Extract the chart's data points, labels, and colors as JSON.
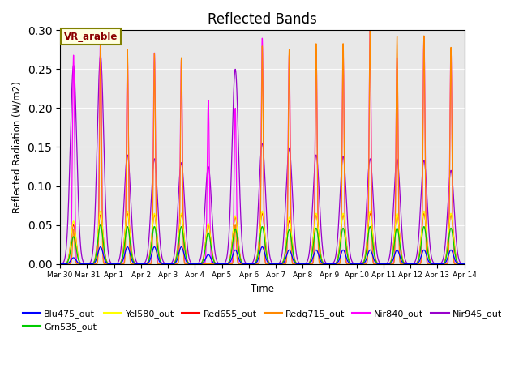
{
  "title": "Reflected Bands",
  "xlabel": "Time",
  "ylabel": "Reflected Radiation (W/m2)",
  "annotation": "VR_arable",
  "ylim": [
    0,
    0.3
  ],
  "series_order": [
    "Nir945_out",
    "Nir840_out",
    "Redg715_out",
    "Red655_out",
    "Yel580_out",
    "Grn535_out",
    "Blu475_out"
  ],
  "series": {
    "Blu475_out": {
      "color": "#0000FF"
    },
    "Grn535_out": {
      "color": "#00CC00"
    },
    "Yel580_out": {
      "color": "#FFFF00"
    },
    "Red655_out": {
      "color": "#FF0000"
    },
    "Redg715_out": {
      "color": "#FF8800"
    },
    "Nir840_out": {
      "color": "#FF00FF"
    },
    "Nir945_out": {
      "color": "#9900CC"
    }
  },
  "legend_order": [
    "Blu475_out",
    "Grn535_out",
    "Yel580_out",
    "Red655_out",
    "Redg715_out",
    "Nir840_out",
    "Nir945_out"
  ],
  "tick_labels": [
    "Mar 30",
    "Mar 31",
    "Apr 1",
    "Apr 2",
    "Apr 3",
    "Apr 4",
    "Apr 5",
    "Apr 6",
    "Apr 7",
    "Apr 8",
    "Apr 9",
    "Apr 10",
    "Apr 11",
    "Apr 12",
    "Apr 13",
    "Apr 14"
  ],
  "background_color": "#e8e8e8",
  "legend_fontsize": 8,
  "title_fontsize": 12,
  "peaks_nir840": [
    0.268,
    0.292,
    0.264,
    0.271,
    0.262,
    0.21,
    0.2,
    0.29,
    0.268,
    0.272,
    0.272,
    0.3,
    0.265,
    0.292,
    0.275
  ],
  "peaks_nir945": [
    0.255,
    0.268,
    0.14,
    0.135,
    0.13,
    0.125,
    0.25,
    0.155,
    0.148,
    0.14,
    0.138,
    0.135,
    0.135,
    0.133,
    0.12
  ],
  "peaks_redg715": [
    0.045,
    0.284,
    0.275,
    0.27,
    0.265,
    0.0,
    0.05,
    0.28,
    0.275,
    0.283,
    0.283,
    0.3,
    0.292,
    0.293,
    0.278
  ],
  "peaks_red655": [
    0.05,
    0.063,
    0.065,
    0.063,
    0.063,
    0.05,
    0.06,
    0.065,
    0.055,
    0.063,
    0.063,
    0.065,
    0.063,
    0.065,
    0.063
  ],
  "peaks_yel580": [
    0.055,
    0.068,
    0.068,
    0.065,
    0.065,
    0.052,
    0.062,
    0.068,
    0.06,
    0.065,
    0.065,
    0.068,
    0.065,
    0.068,
    0.065
  ],
  "peaks_grn535": [
    0.035,
    0.05,
    0.048,
    0.048,
    0.048,
    0.04,
    0.045,
    0.048,
    0.044,
    0.046,
    0.046,
    0.048,
    0.046,
    0.048,
    0.046
  ],
  "peaks_blu475": [
    0.008,
    0.022,
    0.022,
    0.022,
    0.022,
    0.012,
    0.018,
    0.022,
    0.018,
    0.018,
    0.018,
    0.018,
    0.018,
    0.018,
    0.018
  ]
}
